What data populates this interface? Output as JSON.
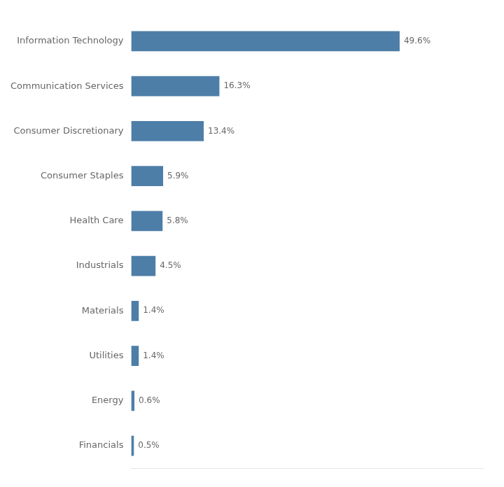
{
  "chart_data": {
    "type": "bar",
    "orientation": "horizontal",
    "categories": [
      "Information Technology",
      "Communication Services",
      "Consumer Discretionary",
      "Consumer Staples",
      "Health Care",
      "Industrials",
      "Materials",
      "Utilities",
      "Energy",
      "Financials"
    ],
    "values": [
      49.6,
      16.3,
      13.4,
      5.9,
      5.8,
      4.5,
      1.4,
      1.4,
      0.6,
      0.5
    ],
    "value_labels": [
      "49.6%",
      "16.3%",
      "13.4%",
      "5.9%",
      "5.8%",
      "4.5%",
      "1.4%",
      "1.4%",
      "0.6%",
      "0.5%"
    ],
    "color": "#4d7ea8",
    "xlim": [
      0,
      65
    ],
    "data_labels": true,
    "tick_labels": "y",
    "grid": false
  }
}
